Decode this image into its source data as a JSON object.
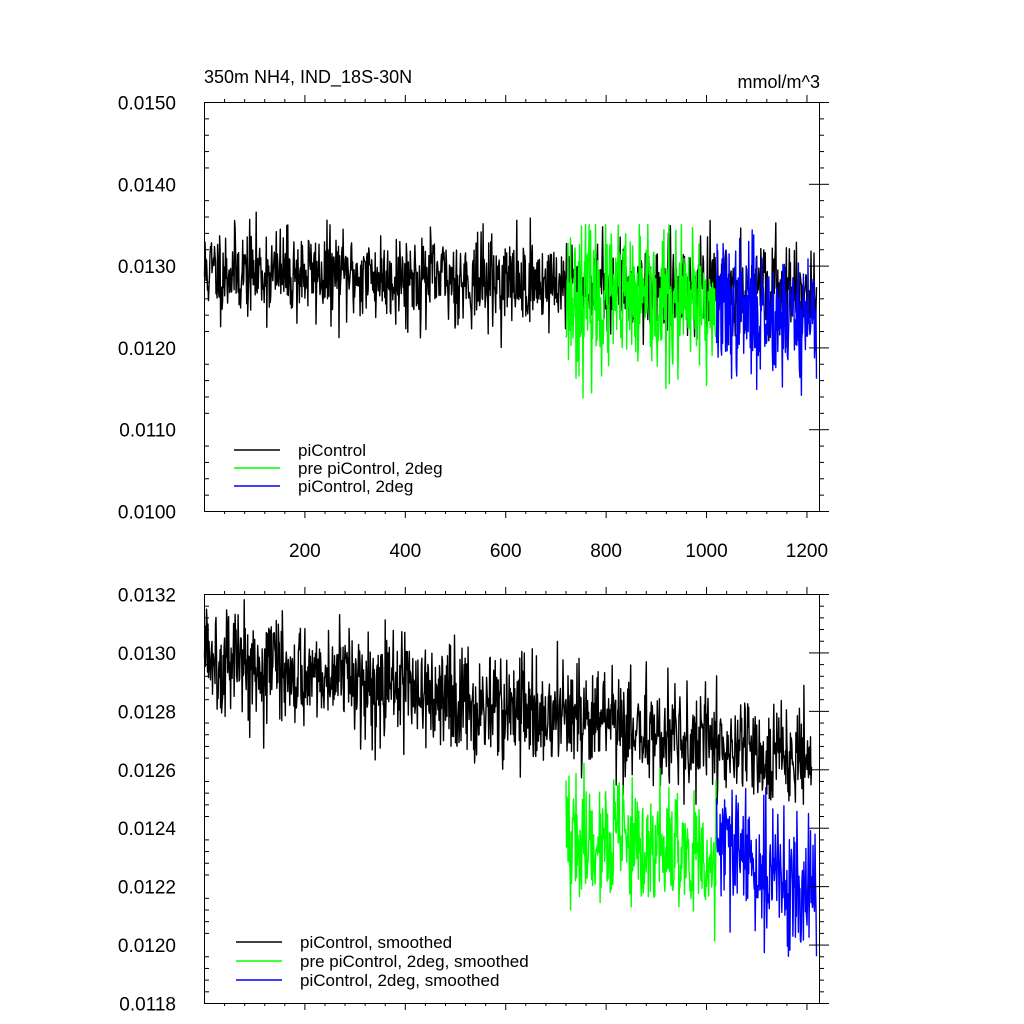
{
  "chart_data": [
    {
      "type": "line",
      "title": "350m NH4, IND_18S-30N",
      "units": "mmol/m^3",
      "xlim": [
        0,
        1225
      ],
      "ylim": [
        0.01,
        0.015
      ],
      "xticks": [
        200,
        400,
        600,
        800,
        1000,
        1200
      ],
      "xticklabels": [
        "200",
        "400",
        "600",
        "800",
        "1000",
        "1200"
      ],
      "yticks": [
        0.01,
        0.011,
        0.012,
        0.013,
        0.014,
        0.015
      ],
      "yticklabels": [
        "0.0100",
        "0.0110",
        "0.0120",
        "0.0130",
        "0.0140",
        "0.0150"
      ],
      "legend_position": "bottom-left",
      "series": [
        {
          "name": "piControl",
          "color": "#000000",
          "x_range": [
            1,
            1220
          ],
          "mean_start": 0.01294,
          "mean_end": 0.01267,
          "noise": 0.0003,
          "min": 0.012,
          "max": 0.0141,
          "seed": 11
        },
        {
          "name": "pre piControl, 2deg",
          "color": "#00ff00",
          "x_range": [
            721,
            1020
          ],
          "mean_start": 0.01262,
          "mean_end": 0.01245,
          "noise": 0.0005,
          "min": 0.011,
          "max": 0.0135,
          "seed": 23
        },
        {
          "name": "piControl, 2deg",
          "color": "#0000ff",
          "x_range": [
            1021,
            1220
          ],
          "mean_start": 0.0125,
          "mean_end": 0.01236,
          "noise": 0.00045,
          "min": 0.011,
          "max": 0.0135,
          "seed": 37
        }
      ]
    },
    {
      "type": "line",
      "xlim": [
        0,
        1225
      ],
      "ylim": [
        0.0118,
        0.0132
      ],
      "xticks": [
        200,
        400,
        600,
        800,
        1000,
        1200
      ],
      "yticks": [
        0.0118,
        0.012,
        0.0122,
        0.0124,
        0.0126,
        0.0128,
        0.013,
        0.0132
      ],
      "yticklabels": [
        "0.0118",
        "0.0120",
        "0.0122",
        "0.0124",
        "0.0126",
        "0.0128",
        "0.0130",
        "0.0132"
      ],
      "legend_position": "bottom-left",
      "series": [
        {
          "name": "piControl, smoothed",
          "color": "#000000",
          "x_range": [
            1,
            1210
          ],
          "mean_start": 0.013,
          "mean_end": 0.01262,
          "noise": 0.0001,
          "min": 0.01248,
          "max": 0.01318,
          "seed": 5
        },
        {
          "name": "pre piControl, 2deg, smoothed",
          "color": "#00ff00",
          "x_range": [
            721,
            1020
          ],
          "mean_start": 0.01238,
          "mean_end": 0.01228,
          "noise": 0.00012,
          "min": 0.01182,
          "max": 0.01262,
          "seed": 19
        },
        {
          "name": "piControl, 2deg, smoothed",
          "color": "#0000ff",
          "x_range": [
            1021,
            1220
          ],
          "mean_start": 0.01235,
          "mean_end": 0.01215,
          "noise": 0.00012,
          "min": 0.01196,
          "max": 0.01256,
          "seed": 29
        }
      ]
    }
  ]
}
